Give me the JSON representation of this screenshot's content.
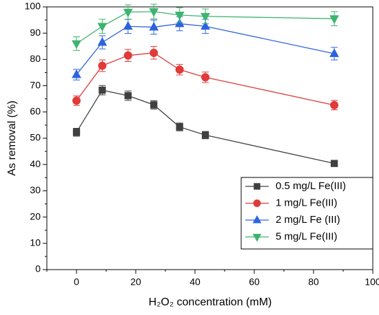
{
  "chart_data": {
    "type": "line",
    "xlabel": "H₂O₂ concentration (mM)",
    "ylabel": "As removal (%)",
    "x": [
      0,
      8.7,
      17.4,
      26.1,
      34.8,
      43.5,
      87
    ],
    "xlim": [
      -10,
      100
    ],
    "xticks": [
      0,
      20,
      40,
      60,
      80,
      100
    ],
    "ylim": [
      0,
      100
    ],
    "yticks": [
      0,
      10,
      20,
      30,
      40,
      50,
      60,
      70,
      80,
      90,
      100
    ],
    "legend": "lower right",
    "series": [
      {
        "name": "0.5 mg/L Fe(III)",
        "color": "#404040",
        "marker": "square",
        "values": [
          52.3,
          68.3,
          66.2,
          62.7,
          54.3,
          51.2,
          40.4
        ],
        "errors": [
          1.5,
          1.8,
          1.8,
          1.6,
          1.5,
          1.4,
          0.8
        ]
      },
      {
        "name": "1 mg/L Fe(III)",
        "color": "#e03a3a",
        "marker": "circle",
        "values": [
          64.3,
          77.6,
          81.5,
          82.5,
          76.1,
          73.2,
          62.6
        ],
        "errors": [
          1.8,
          2.2,
          2.3,
          2.4,
          2.0,
          2.0,
          1.8
        ]
      },
      {
        "name": "2 mg/L Fe (III)",
        "color": "#2d63e0",
        "marker": "triangle-up",
        "values": [
          74.2,
          86.5,
          92.6,
          92.3,
          93.6,
          92.6,
          82.2
        ],
        "errors": [
          2.0,
          2.5,
          2.7,
          2.7,
          2.7,
          2.7,
          2.4
        ]
      },
      {
        "name": "5 mg/L Fe(III)",
        "color": "#3cb46e",
        "marker": "triangle-down",
        "values": [
          86.0,
          92.6,
          98.0,
          98.2,
          96.9,
          96.4,
          95.5
        ],
        "errors": [
          2.6,
          2.7,
          2.8,
          2.8,
          2.8,
          2.8,
          2.7
        ]
      }
    ]
  }
}
